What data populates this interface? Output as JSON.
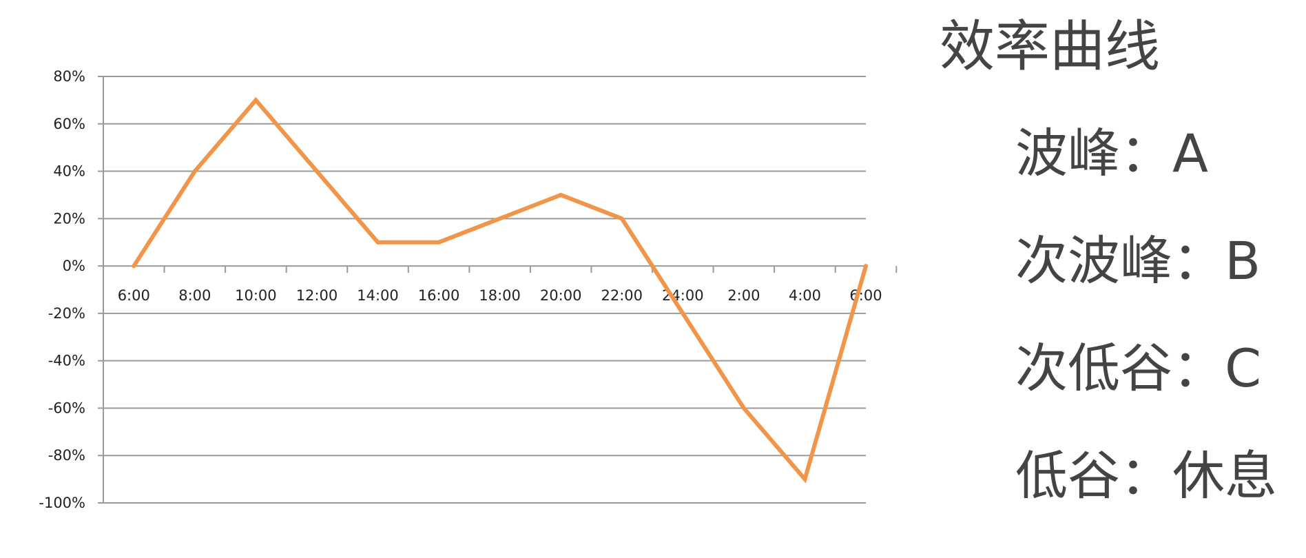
{
  "chart_data": {
    "type": "line",
    "categories": [
      "6:00",
      "8:00",
      "10:00",
      "12:00",
      "14:00",
      "16:00",
      "18:00",
      "20:00",
      "22:00",
      "24:00",
      "2:00",
      "4:00",
      "6:00"
    ],
    "series": [
      {
        "color": "#F0954A",
        "points": [
          {
            "x": 0,
            "y": 0
          },
          {
            "x": 1,
            "y": 40
          },
          {
            "x": 2,
            "y": 70
          },
          {
            "x": 3,
            "y": 40
          },
          {
            "x": 4,
            "y": 10
          },
          {
            "x": 5,
            "y": 10
          },
          {
            "x": 6,
            "y": 20
          },
          {
            "x": 7,
            "y": 30
          },
          {
            "x": 8,
            "y": 20
          },
          {
            "x": 10,
            "y": -60
          },
          {
            "x": 11,
            "y": -90
          },
          {
            "x": 12,
            "y": 0
          }
        ]
      }
    ],
    "yticks": [
      "80%",
      "60%",
      "40%",
      "20%",
      "0%",
      "-20%",
      "-40%",
      "-60%",
      "-80%",
      "-100%"
    ],
    "ylim": [
      -100,
      80
    ],
    "grid": true,
    "legend": "none"
  },
  "side_panel": {
    "heading": "效率曲线",
    "items": [
      "波峰：A",
      "次波峰：B",
      "次低谷：C",
      "低谷：休息"
    ]
  }
}
